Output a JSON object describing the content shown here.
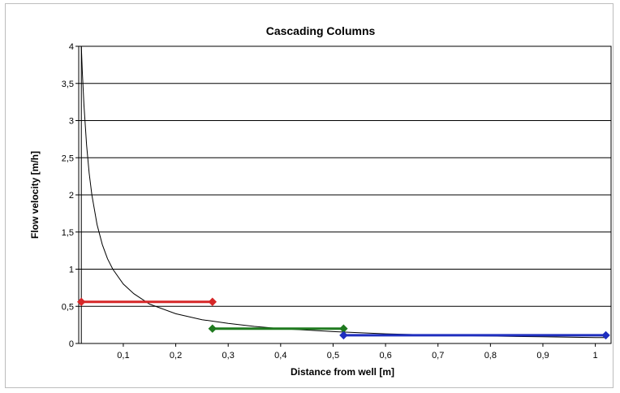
{
  "chart_data": {
    "type": "line",
    "title": "Cascading Columns",
    "xlabel": "Distance from well [m]",
    "ylabel": "Flow velocity [m/h]",
    "xlim": [
      0.015,
      1.03
    ],
    "ylim": [
      0,
      4
    ],
    "x_ticks": [
      {
        "value": 0.1,
        "label": "0,1"
      },
      {
        "value": 0.2,
        "label": "0,2"
      },
      {
        "value": 0.3,
        "label": "0,3"
      },
      {
        "value": 0.4,
        "label": "0,4"
      },
      {
        "value": 0.5,
        "label": "0,5"
      },
      {
        "value": 0.6,
        "label": "0,6"
      },
      {
        "value": 0.7,
        "label": "0,7"
      },
      {
        "value": 0.8,
        "label": "0,8"
      },
      {
        "value": 0.9,
        "label": "0,9"
      },
      {
        "value": 1.0,
        "label": "1"
      }
    ],
    "y_ticks": [
      {
        "value": 0,
        "label": "0"
      },
      {
        "value": 0.5,
        "label": "0,5"
      },
      {
        "value": 1,
        "label": "1"
      },
      {
        "value": 1.5,
        "label": "1,5"
      },
      {
        "value": 2,
        "label": "2"
      },
      {
        "value": 2.5,
        "label": "2,5"
      },
      {
        "value": 3,
        "label": "3"
      },
      {
        "value": 3.5,
        "label": "3,5"
      },
      {
        "value": 4,
        "label": "4"
      }
    ],
    "grid": "horizontal",
    "curve": {
      "color": "#000000",
      "x": [
        0.02,
        0.022,
        0.025,
        0.03,
        0.035,
        0.04,
        0.05,
        0.06,
        0.07,
        0.08,
        0.1,
        0.12,
        0.15,
        0.2,
        0.25,
        0.3,
        0.35,
        0.4,
        0.45,
        0.5,
        0.6,
        0.7,
        0.8,
        0.9,
        1.0,
        1.02
      ],
      "y": [
        4.0,
        3.64,
        3.2,
        2.67,
        2.29,
        2.0,
        1.6,
        1.33,
        1.14,
        1.0,
        0.8,
        0.67,
        0.53,
        0.4,
        0.32,
        0.27,
        0.23,
        0.2,
        0.18,
        0.16,
        0.13,
        0.11,
        0.1,
        0.09,
        0.08,
        0.08
      ]
    },
    "series": [
      {
        "color": "#d62728",
        "x": [
          0.02,
          0.27
        ],
        "y": [
          0.56,
          0.56
        ]
      },
      {
        "color": "#1f7a1f",
        "x": [
          0.27,
          0.52
        ],
        "y": [
          0.2,
          0.2
        ]
      },
      {
        "color": "#1f2fbf",
        "x": [
          0.52,
          1.02
        ],
        "y": [
          0.11,
          0.11
        ]
      }
    ]
  }
}
